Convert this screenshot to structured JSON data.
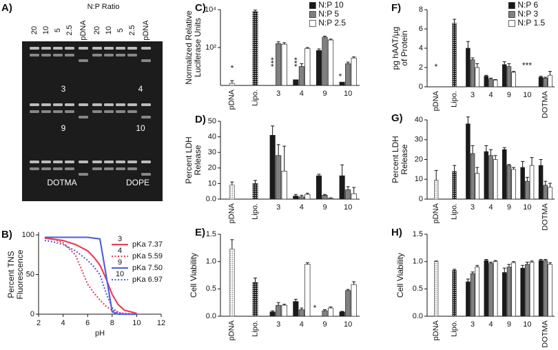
{
  "gel": {
    "panel": "A)",
    "title": "N:P Ratio",
    "lanes": [
      "20",
      "10",
      "5",
      "2.5",
      "pDNA",
      "20",
      "10",
      "5",
      "2.5",
      "pDNA"
    ],
    "labels": [
      "3",
      "4",
      "9",
      "10",
      "DOTMA",
      "DOPE"
    ]
  },
  "chart_data": [
    {
      "panel": "B)",
      "type": "line",
      "y_label": [
        "Percent TNS",
        "Fluorescence"
      ],
      "x_label": "pH",
      "x": [
        2.5,
        3,
        4,
        5,
        6,
        6.5,
        7,
        7.5,
        8,
        8.5,
        9,
        10,
        11,
        12
      ],
      "xlim": [
        2,
        12
      ],
      "xticks": [
        2,
        4,
        6,
        8,
        10,
        12
      ],
      "ylim": [
        0,
        100
      ],
      "yticks": [
        0,
        50,
        100
      ],
      "series": [
        {
          "name": "3",
          "annotation": "pKa 7.37",
          "color": "#e8405a",
          "style": "solid",
          "values": [
            96,
            95,
            93,
            88,
            80,
            72,
            62,
            45,
            25,
            12,
            5,
            1,
            null,
            null
          ]
        },
        {
          "name": "4",
          "annotation": "pKa 5.59",
          "color": "#e8405a",
          "style": "dotted",
          "values": [
            97,
            96,
            90,
            75,
            38,
            27,
            18,
            10,
            5,
            2,
            1,
            0,
            null,
            null
          ]
        },
        {
          "name": "9",
          "annotation": "pKa 7.50",
          "color": "#5561d8",
          "style": "solid",
          "values": [
            97,
            97,
            97,
            97,
            97,
            96,
            95,
            50,
            3,
            0,
            0,
            0,
            null,
            null
          ]
        },
        {
          "name": "10",
          "annotation": "pKa 6.97",
          "color": "#5561d8",
          "style": "dotted",
          "values": [
            93,
            92,
            88,
            80,
            68,
            60,
            50,
            27,
            8,
            2,
            0,
            0,
            null,
            null
          ]
        }
      ]
    },
    {
      "panel": "C)",
      "type": "bar",
      "y_label": [
        "Normalized Relative",
        "Luciferase Units"
      ],
      "log_scale": true,
      "legend": true,
      "categories": [
        "pDNA",
        "Lipo.",
        "3",
        "4",
        "9",
        "10"
      ],
      "ylim": [
        1,
        10000
      ],
      "yticks": [
        {
          "value": 100,
          "label": "10²"
        },
        {
          "value": 10000,
          "label": "10⁴"
        }
      ],
      "control_values": [
        1.3,
        8000,
        null,
        null,
        null,
        null
      ],
      "control_errors": [
        0.5,
        1500,
        null,
        null,
        null,
        null
      ],
      "series": [
        {
          "name": "N:P 10",
          "color": "#1a1a1a",
          "values": [
            null,
            null,
            1,
            2,
            70,
            1.5
          ],
          "errors": [
            null,
            null,
            null,
            null,
            15,
            null
          ]
        },
        {
          "name": "N:P 5",
          "color": "#808080",
          "values": [
            null,
            null,
            160,
            10,
            350,
            14
          ],
          "errors": [
            null,
            null,
            40,
            4,
            50,
            3
          ]
        },
        {
          "name": "N:P 2.5",
          "color": "#ffffff",
          "values": [
            null,
            null,
            150,
            90,
            250,
            28
          ],
          "errors": [
            null,
            null,
            30,
            10,
            30,
            4
          ]
        }
      ],
      "annotations": [
        "*",
        "***",
        "***",
        "*"
      ]
    },
    {
      "panel": "D)",
      "type": "bar",
      "y_label": [
        "Percent LDH",
        "Release"
      ],
      "categories": [
        "pDNA",
        "Lipo.",
        "3",
        "4",
        "9",
        "10"
      ],
      "ylim": [
        0,
        50
      ],
      "yticks": [
        {
          "value": 0,
          "label": "0.0"
        },
        10,
        20,
        30,
        40,
        50
      ],
      "control_values": [
        9,
        10,
        null,
        null,
        null,
        null
      ],
      "control_errors": [
        2,
        2,
        null,
        null,
        null,
        null
      ],
      "series": [
        {
          "name": "N:P 10",
          "color": "#1a1a1a",
          "values": [
            null,
            null,
            41,
            2,
            15,
            15
          ],
          "errors": [
            null,
            null,
            6,
            1,
            1,
            7
          ]
        },
        {
          "name": "N:P 5",
          "color": "#808080",
          "values": [
            null,
            null,
            28,
            1.5,
            2.5,
            6
          ],
          "errors": [
            null,
            null,
            7,
            1,
            0.5,
            2
          ]
        },
        {
          "name": "N:P 2.5",
          "color": "#ffffff",
          "values": [
            null,
            null,
            18,
            3,
            0.5,
            3.5
          ],
          "errors": [
            null,
            null,
            16,
            0.8,
            0.3,
            4
          ]
        }
      ]
    },
    {
      "panel": "E)",
      "type": "bar",
      "y_label": [
        "Cell Viability"
      ],
      "categories": [
        "pDNA",
        "Lipo.",
        "3",
        "4",
        "9",
        "10"
      ],
      "ylim": [
        0,
        1.5
      ],
      "yticks": [
        {
          "value": 0,
          "label": "0.0"
        },
        {
          "value": 0.5,
          "label": "0.5"
        },
        {
          "value": 1,
          "label": "1.0"
        },
        {
          "value": 1.5,
          "label": "1.5"
        }
      ],
      "control_values": [
        1.23,
        0.62,
        null,
        null,
        null,
        null
      ],
      "control_errors": [
        0.17,
        0.08,
        null,
        null,
        null,
        null
      ],
      "series": [
        {
          "name": "N:P 10",
          "color": "#1a1a1a",
          "values": [
            null,
            null,
            0.08,
            0.27,
            0,
            0.08
          ],
          "errors": [
            null,
            null,
            0.02,
            0.04,
            null,
            0.01
          ]
        },
        {
          "name": "N:P 5",
          "color": "#808080",
          "values": [
            null,
            null,
            0.2,
            0.12,
            0.1,
            0.47
          ],
          "errors": [
            null,
            null,
            0.05,
            0.03,
            0.02,
            0.02
          ]
        },
        {
          "name": "N:P 2.5",
          "color": "#ffffff",
          "values": [
            null,
            null,
            0.2,
            0.95,
            0.15,
            0.58
          ],
          "errors": [
            null,
            null,
            0.02,
            0.03,
            0.02,
            0.05
          ]
        }
      ],
      "annotations": [
        "*"
      ]
    },
    {
      "panel": "F)",
      "type": "bar",
      "y_label": [
        "pg hAAT/µg",
        "of Protein"
      ],
      "legend": true,
      "categories": [
        "pDNA",
        "Lipo.",
        "3",
        "4",
        "9",
        "10",
        "DOTMA"
      ],
      "ylim": [
        0,
        8
      ],
      "yticks": [
        0,
        2,
        4,
        6,
        8
      ],
      "control_values": [
        0,
        6.6,
        null,
        null,
        null,
        null,
        null
      ],
      "control_errors": [
        null,
        0.4,
        null,
        null,
        null,
        null,
        null
      ],
      "series": [
        {
          "name": "N:P 6",
          "color": "#1a1a1a",
          "values": [
            null,
            null,
            4.0,
            1.1,
            2.3,
            0,
            1.0
          ],
          "errors": [
            null,
            null,
            0.7,
            0.1,
            0.3,
            null,
            0.1
          ]
        },
        {
          "name": "N:P 3",
          "color": "#808080",
          "values": [
            null,
            null,
            2.8,
            0.8,
            2.1,
            0,
            0.9
          ],
          "errors": [
            null,
            null,
            0.2,
            0.1,
            0.3,
            null,
            0.1
          ]
        },
        {
          "name": "N:P 1.5",
          "color": "#ffffff",
          "values": [
            null,
            null,
            2.0,
            0.7,
            1.5,
            0,
            1.2
          ],
          "errors": [
            null,
            null,
            0.4,
            0.05,
            0.1,
            null,
            0.4
          ]
        }
      ],
      "annotations": [
        "*",
        "***"
      ]
    },
    {
      "panel": "G)",
      "type": "bar",
      "y_label": [
        "Percent LDH",
        "Release"
      ],
      "categories": [
        "pDNA",
        "Lipo.",
        "3",
        "4",
        "9",
        "10",
        "DOTMA"
      ],
      "ylim": [
        0,
        40
      ],
      "yticks": [
        0,
        10,
        20,
        30,
        40
      ],
      "control_values": [
        9.5,
        14,
        null,
        null,
        null,
        null,
        null
      ],
      "control_errors": [
        5,
        3,
        null,
        null,
        null,
        null,
        null
      ],
      "series": [
        {
          "name": "N:P 6",
          "color": "#1a1a1a",
          "values": [
            null,
            null,
            38,
            24,
            25,
            16,
            17
          ],
          "errors": [
            null,
            null,
            3.5,
            3,
            1,
            3,
            3
          ]
        },
        {
          "name": "N:P 3",
          "color": "#808080",
          "values": [
            null,
            null,
            23,
            22,
            17,
            9,
            7
          ],
          "errors": [
            null,
            null,
            4,
            3,
            0.5,
            2,
            2
          ]
        },
        {
          "name": "N:P 1.5",
          "color": "#ffffff",
          "values": [
            null,
            null,
            13,
            20,
            15,
            17,
            6
          ],
          "errors": [
            null,
            null,
            3,
            2,
            1,
            4,
            2
          ]
        }
      ]
    },
    {
      "panel": "H)",
      "type": "bar",
      "y_label": [
        "Cell Viability"
      ],
      "categories": [
        "pDNA",
        "Lipo.",
        "3",
        "4",
        "9",
        "10",
        "DOTMA"
      ],
      "ylim": [
        0,
        1.5
      ],
      "yticks": [
        {
          "value": 0,
          "label": "0.0"
        },
        {
          "value": 0.5,
          "label": "0.5"
        },
        {
          "value": 1,
          "label": "1.0"
        },
        {
          "value": 1.5,
          "label": "1.5"
        }
      ],
      "control_values": [
        1.0,
        0.84,
        null,
        null,
        null,
        null,
        null
      ],
      "control_errors": [
        0.01,
        0.02,
        null,
        null,
        null,
        null,
        null
      ],
      "series": [
        {
          "name": "N:P 6",
          "color": "#1a1a1a",
          "values": [
            null,
            null,
            0.63,
            1.02,
            0.8,
            0.88,
            1.02
          ],
          "errors": [
            null,
            null,
            0.05,
            0.02,
            0.08,
            0.05,
            0.02
          ]
        },
        {
          "name": "N:P 3",
          "color": "#808080",
          "values": [
            null,
            null,
            0.78,
            0.97,
            0.9,
            0.95,
            1.02
          ],
          "errors": [
            null,
            null,
            0.03,
            0.02,
            0.05,
            0.04,
            0.02
          ]
        },
        {
          "name": "N:P 1.5",
          "color": "#ffffff",
          "values": [
            null,
            null,
            0.9,
            1.0,
            0.98,
            0.99,
            0.95
          ],
          "errors": [
            null,
            null,
            0.03,
            0.02,
            0.02,
            0.02,
            0.03
          ]
        }
      ]
    }
  ]
}
